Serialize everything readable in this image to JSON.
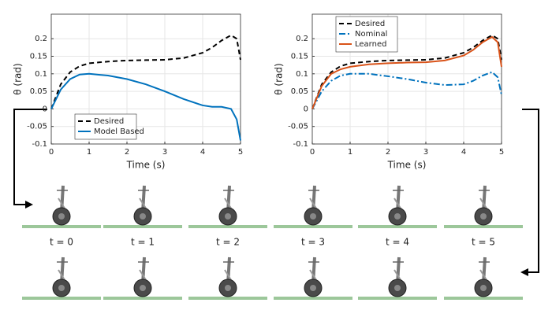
{
  "chart_data": [
    {
      "type": "line",
      "ylabel": "θ (rad)",
      "xlabel": "Time (s)",
      "x": [
        0,
        0.25,
        0.5,
        0.75,
        1,
        1.5,
        2,
        2.5,
        3,
        3.5,
        4,
        4.25,
        4.5,
        4.75,
        4.9,
        5
      ],
      "series": [
        {
          "name": "Desired",
          "color": "#000000",
          "dash": "dashed",
          "values": [
            0,
            0.07,
            0.105,
            0.122,
            0.13,
            0.135,
            0.138,
            0.139,
            0.14,
            0.145,
            0.16,
            0.175,
            0.195,
            0.21,
            0.2,
            0.14
          ]
        },
        {
          "name": "Model Based",
          "color": "#0072bd",
          "dash": "solid",
          "values": [
            0,
            0.055,
            0.085,
            0.098,
            0.1,
            0.095,
            0.085,
            0.07,
            0.05,
            0.028,
            0.01,
            0.006,
            0.006,
            0,
            -0.03,
            -0.09
          ]
        }
      ],
      "xlim": [
        0,
        5
      ],
      "xticks": [
        0,
        1,
        2,
        3,
        4,
        5
      ],
      "ylim": [
        -0.1,
        0.27
      ],
      "yticks": [
        -0.1,
        -0.05,
        0,
        0.05,
        0.1,
        0.15,
        0.2
      ],
      "grid": true,
      "legend": "lower left"
    },
    {
      "type": "line",
      "ylabel": "θ (rad)",
      "xlabel": "Time (s)",
      "x": [
        0,
        0.25,
        0.5,
        0.75,
        1,
        1.5,
        2,
        2.5,
        3,
        3.5,
        4,
        4.25,
        4.5,
        4.75,
        4.9,
        5
      ],
      "series": [
        {
          "name": "Desired",
          "color": "#000000",
          "dash": "dashed",
          "values": [
            0,
            0.07,
            0.105,
            0.122,
            0.13,
            0.135,
            0.138,
            0.139,
            0.14,
            0.145,
            0.16,
            0.175,
            0.195,
            0.21,
            0.2,
            0.14
          ]
        },
        {
          "name": "Nominal",
          "color": "#0072bd",
          "dash": "dashdot",
          "values": [
            0,
            0.05,
            0.08,
            0.095,
            0.1,
            0.1,
            0.093,
            0.085,
            0.075,
            0.068,
            0.07,
            0.08,
            0.095,
            0.105,
            0.09,
            0.04
          ]
        },
        {
          "name": "Learned",
          "color": "#d95319",
          "dash": "solid",
          "values": [
            0,
            0.065,
            0.1,
            0.113,
            0.12,
            0.127,
            0.13,
            0.132,
            0.133,
            0.138,
            0.152,
            0.168,
            0.19,
            0.205,
            0.19,
            0.12
          ]
        }
      ],
      "xlim": [
        0,
        5
      ],
      "xticks": [
        0,
        1,
        2,
        3,
        4,
        5
      ],
      "ylim": [
        -0.1,
        0.27
      ],
      "yticks": [
        -0.1,
        -0.05,
        0,
        0.05,
        0.1,
        0.15,
        0.2
      ],
      "grid": true,
      "legend": "upper left"
    }
  ],
  "frames": {
    "labels": [
      "t = 0",
      "t = 1",
      "t = 2",
      "t = 3",
      "t = 4",
      "t = 5"
    ]
  }
}
